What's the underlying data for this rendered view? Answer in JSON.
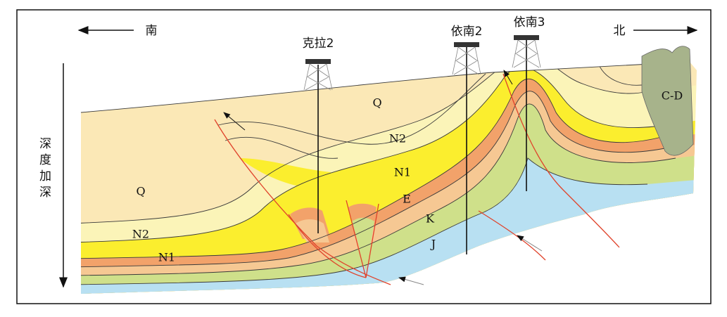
{
  "directions": {
    "south": "南",
    "north": "北"
  },
  "wells": [
    {
      "label": "克拉2"
    },
    {
      "label": "依南2"
    },
    {
      "label": "依南3"
    }
  ],
  "depth_label": "深度加深",
  "layer_labels": [
    "Q",
    "N2",
    "N1",
    "E",
    "K",
    "J",
    "Q",
    "N2",
    "N1",
    "C-D"
  ]
}
